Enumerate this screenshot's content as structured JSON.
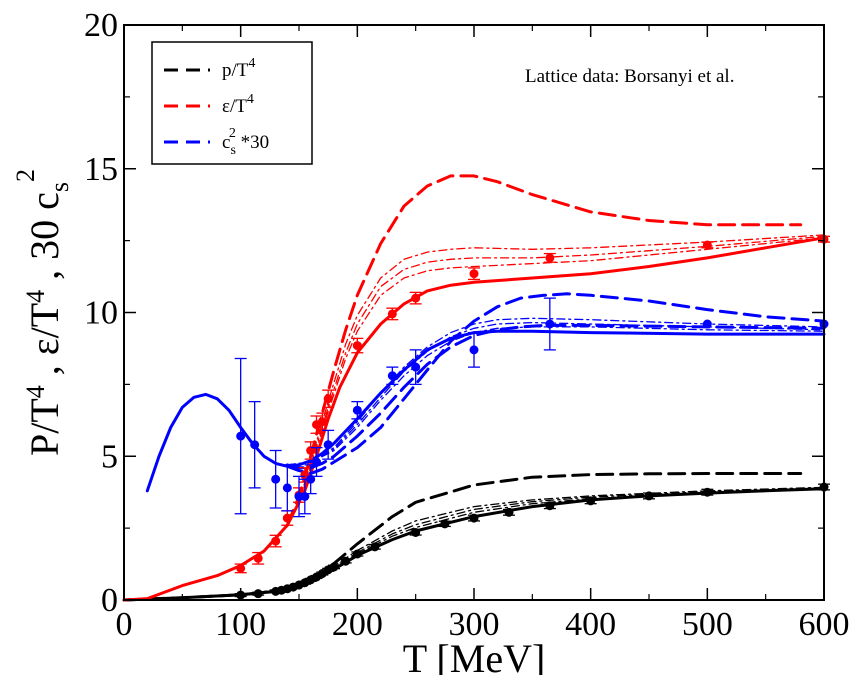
{
  "chart_data": {
    "type": "line",
    "annotation": "Lattice data: Borsanyi et al.",
    "xlabel": "T [MeV]",
    "ylabel_parts": [
      "P/T",
      "4",
      " ,  ε/T",
      "4",
      " ,  30 c",
      "s",
      "2"
    ],
    "xlim": [
      0,
      600
    ],
    "ylim": [
      0,
      20
    ],
    "xticks": [
      0,
      100,
      200,
      300,
      400,
      500,
      600
    ],
    "yticks": [
      0,
      5,
      10,
      15,
      20
    ],
    "legend": {
      "position": "top-left",
      "entries": [
        {
          "color": "#000000",
          "parts": [
            "p/T",
            "4"
          ]
        },
        {
          "color": "#ff0000",
          "parts": [
            "ε/T",
            "4"
          ]
        },
        {
          "color": "#0000ff",
          "parts": [
            "c",
            "s",
            "2",
            " *30"
          ]
        }
      ]
    },
    "colors": {
      "pressure": "#000000",
      "energy": "#ff0000",
      "sound": "#0000ff"
    },
    "curves": [
      {
        "group": "pressure",
        "style": "solid",
        "x": [
          0,
          50,
          100,
          130,
          150,
          175,
          200,
          230,
          250,
          300,
          350,
          400,
          450,
          500,
          550,
          600
        ],
        "y": [
          0,
          0.08,
          0.18,
          0.3,
          0.45,
          0.95,
          1.55,
          2.1,
          2.4,
          2.9,
          3.25,
          3.48,
          3.62,
          3.72,
          3.8,
          3.87
        ]
      },
      {
        "group": "pressure",
        "style": "dashed",
        "x": [
          0,
          50,
          100,
          130,
          150,
          175,
          200,
          230,
          250,
          300,
          350,
          400,
          450,
          500,
          580
        ],
        "y": [
          0,
          0.08,
          0.18,
          0.3,
          0.48,
          1.1,
          1.95,
          2.9,
          3.4,
          4.0,
          4.27,
          4.36,
          4.39,
          4.4,
          4.4
        ]
      },
      {
        "group": "pressure",
        "style": "dashdot",
        "x": [
          100,
          150,
          175,
          200,
          230,
          250,
          300,
          350,
          400,
          500,
          600
        ],
        "y": [
          0.18,
          0.47,
          1.05,
          1.72,
          2.4,
          2.75,
          3.25,
          3.48,
          3.62,
          3.8,
          3.92
        ]
      },
      {
        "group": "pressure",
        "style": "dashdot",
        "x": [
          100,
          150,
          175,
          200,
          230,
          250,
          300,
          350,
          400,
          500,
          600
        ],
        "y": [
          0.18,
          0.46,
          1.0,
          1.65,
          2.3,
          2.62,
          3.15,
          3.42,
          3.58,
          3.77,
          3.9
        ]
      },
      {
        "group": "pressure",
        "style": "dashdot",
        "x": [
          100,
          150,
          175,
          200,
          230,
          250,
          300,
          350,
          400,
          500,
          600
        ],
        "y": [
          0.18,
          0.46,
          0.98,
          1.6,
          2.22,
          2.52,
          3.05,
          3.35,
          3.52,
          3.74,
          3.88
        ]
      },
      {
        "group": "energy",
        "style": "solid",
        "x": [
          0,
          20,
          50,
          80,
          100,
          120,
          140,
          155,
          165,
          175,
          185,
          200,
          220,
          240,
          260,
          280,
          300,
          350,
          400,
          450,
          500,
          550,
          600
        ],
        "y": [
          0,
          0.05,
          0.5,
          0.85,
          1.2,
          1.7,
          2.6,
          3.8,
          5.0,
          6.3,
          7.4,
          8.6,
          9.6,
          10.3,
          10.75,
          10.95,
          11.05,
          11.2,
          11.35,
          11.6,
          11.9,
          12.25,
          12.6
        ]
      },
      {
        "group": "energy",
        "style": "dashed",
        "x": [
          140,
          150,
          160,
          170,
          180,
          190,
          200,
          220,
          240,
          260,
          280,
          300,
          320,
          350,
          400,
          450,
          500,
          580
        ],
        "y": [
          2.6,
          3.6,
          5.0,
          6.5,
          8.0,
          9.4,
          10.6,
          12.4,
          13.7,
          14.4,
          14.75,
          14.75,
          14.55,
          14.1,
          13.5,
          13.2,
          13.05,
          13.05
        ]
      },
      {
        "group": "energy",
        "style": "dashdot",
        "x": [
          150,
          160,
          175,
          190,
          200,
          220,
          240,
          260,
          280,
          300,
          350,
          400,
          500,
          600
        ],
        "y": [
          3.4,
          4.8,
          6.9,
          8.9,
          9.9,
          11.2,
          11.85,
          12.1,
          12.2,
          12.25,
          12.2,
          12.25,
          12.45,
          12.7
        ]
      },
      {
        "group": "energy",
        "style": "dashdot",
        "x": [
          150,
          160,
          175,
          190,
          200,
          220,
          240,
          260,
          280,
          300,
          350,
          400,
          500,
          600
        ],
        "y": [
          3.35,
          4.7,
          6.7,
          8.6,
          9.6,
          10.9,
          11.5,
          11.75,
          11.85,
          11.9,
          11.9,
          12.0,
          12.3,
          12.65
        ]
      },
      {
        "group": "energy",
        "style": "dashdot",
        "x": [
          150,
          160,
          175,
          190,
          200,
          220,
          240,
          260,
          280,
          300,
          350,
          400,
          500,
          600
        ],
        "y": [
          3.3,
          4.6,
          6.55,
          8.4,
          9.35,
          10.6,
          11.2,
          11.45,
          11.55,
          11.6,
          11.7,
          11.8,
          12.2,
          12.6
        ]
      },
      {
        "group": "sound",
        "style": "solid",
        "x": [
          20,
          30,
          40,
          50,
          60,
          70,
          80,
          90,
          100,
          110,
          120,
          130,
          140,
          150,
          160,
          170,
          180,
          200,
          220,
          240,
          260,
          280,
          300,
          320,
          350,
          400,
          500,
          600
        ],
        "y": [
          3.8,
          5.0,
          6.0,
          6.7,
          7.05,
          7.15,
          7.0,
          6.6,
          6.0,
          5.45,
          5.0,
          4.75,
          4.65,
          4.7,
          4.85,
          5.1,
          5.45,
          6.3,
          7.2,
          8.0,
          8.7,
          9.1,
          9.3,
          9.35,
          9.35,
          9.3,
          9.25,
          9.25
        ]
      },
      {
        "group": "sound",
        "style": "dashed",
        "x": [
          140,
          150,
          160,
          170,
          180,
          200,
          220,
          240,
          260,
          280,
          300,
          320,
          340,
          360,
          380,
          400,
          450,
          500,
          550,
          600
        ],
        "y": [
          4.65,
          4.5,
          4.4,
          4.55,
          4.8,
          5.3,
          6.0,
          7.0,
          8.0,
          9.0,
          9.7,
          10.2,
          10.5,
          10.6,
          10.65,
          10.6,
          10.4,
          10.1,
          9.85,
          9.7
        ]
      },
      {
        "group": "sound",
        "style": "dashed",
        "x": [
          140,
          150,
          160,
          170,
          180,
          200,
          220,
          240,
          260,
          280,
          300,
          320,
          340,
          360,
          400,
          500,
          600
        ],
        "y": [
          4.7,
          4.6,
          4.6,
          4.75,
          5.0,
          5.7,
          6.5,
          7.4,
          8.2,
          8.8,
          9.2,
          9.4,
          9.5,
          9.55,
          9.55,
          9.5,
          9.45
        ]
      },
      {
        "group": "sound",
        "style": "dashdot",
        "x": [
          140,
          160,
          180,
          200,
          220,
          240,
          260,
          280,
          300,
          320,
          350,
          400,
          500,
          600
        ],
        "y": [
          4.7,
          4.8,
          5.3,
          6.2,
          7.2,
          8.1,
          8.8,
          9.3,
          9.6,
          9.75,
          9.8,
          9.75,
          9.6,
          9.5
        ]
      },
      {
        "group": "sound",
        "style": "dashdot",
        "x": [
          140,
          160,
          180,
          200,
          220,
          240,
          260,
          280,
          300,
          320,
          350,
          400,
          500,
          600
        ],
        "y": [
          4.7,
          4.8,
          5.25,
          6.1,
          7.05,
          7.95,
          8.65,
          9.15,
          9.45,
          9.6,
          9.65,
          9.6,
          9.5,
          9.4
        ]
      },
      {
        "group": "sound",
        "style": "dashdot",
        "x": [
          140,
          160,
          180,
          200,
          220,
          240,
          260,
          280,
          300,
          320,
          350,
          400,
          500,
          600
        ],
        "y": [
          4.7,
          4.78,
          5.2,
          6.0,
          6.95,
          7.8,
          8.5,
          9.0,
          9.3,
          9.45,
          9.5,
          9.5,
          9.4,
          9.35
        ]
      }
    ],
    "points": [
      {
        "group": "pressure",
        "x": [
          100,
          115,
          130,
          135,
          140,
          145,
          150,
          155,
          160,
          165,
          170,
          175,
          180,
          190,
          200,
          215,
          250,
          275,
          300,
          330,
          365,
          400,
          450,
          500,
          600
        ],
        "y": [
          0.17,
          0.22,
          0.3,
          0.34,
          0.39,
          0.45,
          0.52,
          0.6,
          0.7,
          0.8,
          0.92,
          1.05,
          1.15,
          1.35,
          1.6,
          1.85,
          2.35,
          2.65,
          2.85,
          3.05,
          3.28,
          3.45,
          3.62,
          3.75,
          3.93
        ],
        "err": [
          0.05,
          0.05,
          0.05,
          0.05,
          0.05,
          0.05,
          0.05,
          0.05,
          0.05,
          0.05,
          0.05,
          0.05,
          0.06,
          0.06,
          0.07,
          0.08,
          0.09,
          0.09,
          0.1,
          0.1,
          0.1,
          0.1,
          0.1,
          0.1,
          0.1
        ]
      },
      {
        "group": "energy",
        "x": [
          100,
          115,
          130,
          140,
          150,
          155,
          160,
          165,
          170,
          175,
          200,
          230,
          250,
          300,
          365,
          500,
          600
        ],
        "y": [
          1.1,
          1.45,
          2.05,
          2.85,
          3.65,
          4.35,
          5.2,
          6.1,
          6.2,
          7.0,
          8.85,
          9.95,
          10.5,
          11.35,
          11.9,
          12.35,
          12.55
        ],
        "err": [
          0.15,
          0.2,
          0.2,
          0.25,
          0.25,
          0.25,
          0.3,
          0.3,
          0.3,
          0.3,
          0.25,
          0.2,
          0.2,
          0.2,
          0.15,
          0.1,
          0.1
        ]
      },
      {
        "group": "sound",
        "x": [
          100,
          112,
          130,
          140,
          150,
          155,
          160,
          165,
          175,
          200,
          230,
          250,
          300,
          365,
          500,
          600
        ],
        "y": [
          5.7,
          5.4,
          4.2,
          3.9,
          3.6,
          3.6,
          4.2,
          4.8,
          5.4,
          6.6,
          7.8,
          8.1,
          8.7,
          9.6,
          9.6,
          9.6
        ],
        "err": [
          2.7,
          1.5,
          1.0,
          0.8,
          0.7,
          0.6,
          0.5,
          0.5,
          0.5,
          0.3,
          0.3,
          0.6,
          0.6,
          0.9,
          0.0,
          0.0
        ]
      }
    ]
  }
}
